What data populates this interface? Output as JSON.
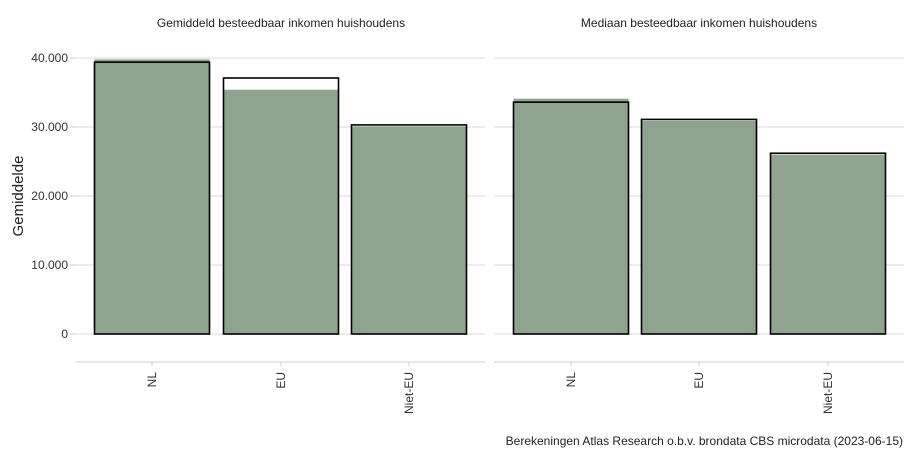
{
  "chart_data": [
    {
      "type": "bar",
      "title": "Gemiddeld besteedbaar inkomen huishoudens",
      "ylabel": "Gemiddelde",
      "xlabel": "",
      "categories": [
        "NL",
        "EU",
        "Niet-EU"
      ],
      "series": [
        {
          "values": [
            39400,
            37100,
            30300
          ]
        },
        {
          "values": [
            39800,
            35400,
            30100
          ]
        }
      ],
      "ylim": [
        0,
        40000
      ],
      "yticks": [
        "0",
        "10.000",
        "20.000",
        "30.000",
        "40.000"
      ],
      "colors": {
        "outline_series": "#000000",
        "fill_series": "#8fa38e"
      }
    },
    {
      "type": "bar",
      "title": "Mediaan besteedbaar inkomen huishoudens",
      "ylabel": "",
      "xlabel": "",
      "categories": [
        "NL",
        "EU",
        "Niet-EU"
      ],
      "series": [
        {
          "values": [
            33600,
            31100,
            26200
          ]
        },
        {
          "values": [
            34100,
            30900,
            26000
          ]
        }
      ],
      "ylim": [
        0,
        40000
      ],
      "colors": {
        "outline_series": "#000000",
        "fill_series": "#8fa38e"
      }
    }
  ],
  "caption": "Berekeningen Atlas Research o.b.v. brondata CBS microdata (2023-06-15)",
  "style": {
    "grid": true,
    "gridColor": "#d9d9d9",
    "fillColor": "#8fa38e",
    "outlineColor": "#000000"
  }
}
